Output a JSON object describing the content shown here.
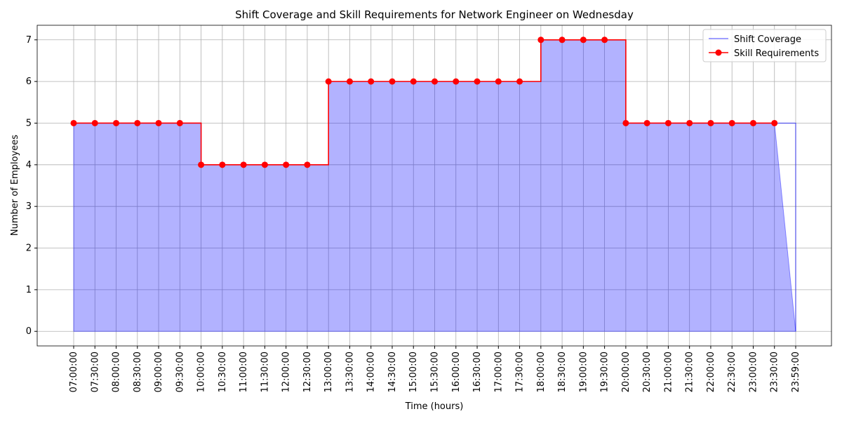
{
  "chart_data": {
    "type": "line",
    "title": "Shift Coverage and Skill Requirements for Network Engineer on Wednesday",
    "xlabel": "Time (hours)",
    "ylabel": "Number of Employees",
    "categories": [
      "07:00:00",
      "07:30:00",
      "08:00:00",
      "08:30:00",
      "09:00:00",
      "09:30:00",
      "10:00:00",
      "10:30:00",
      "11:00:00",
      "11:30:00",
      "12:00:00",
      "12:30:00",
      "13:00:00",
      "13:30:00",
      "14:00:00",
      "14:30:00",
      "15:00:00",
      "15:30:00",
      "16:00:00",
      "16:30:00",
      "17:00:00",
      "17:30:00",
      "18:00:00",
      "18:30:00",
      "19:00:00",
      "19:30:00",
      "20:00:00",
      "20:30:00",
      "21:00:00",
      "21:30:00",
      "22:00:00",
      "22:30:00",
      "23:00:00",
      "23:30:00",
      "23:59:00"
    ],
    "series": [
      {
        "name": "Shift Coverage",
        "color": "#0000ff",
        "fill": true,
        "values": [
          5,
          5,
          5,
          5,
          5,
          5,
          4,
          4,
          4,
          4,
          4,
          4,
          6,
          6,
          6,
          6,
          6,
          6,
          6,
          6,
          6,
          6,
          7,
          7,
          7,
          7,
          5,
          5,
          5,
          5,
          5,
          5,
          5,
          5,
          0
        ]
      },
      {
        "name": "Skill Requirements",
        "color": "#ff0000",
        "markers": true,
        "values": [
          5,
          5,
          5,
          5,
          5,
          5,
          4,
          4,
          4,
          4,
          4,
          4,
          6,
          6,
          6,
          6,
          6,
          6,
          6,
          6,
          6,
          6,
          7,
          7,
          7,
          7,
          5,
          5,
          5,
          5,
          5,
          5,
          5,
          5,
          null
        ]
      }
    ],
    "step": "post",
    "ylim": [
      -0.35,
      7.35
    ],
    "yticks": [
      0,
      1,
      2,
      3,
      4,
      5,
      6,
      7
    ],
    "grid": true,
    "legend": "upper right"
  }
}
